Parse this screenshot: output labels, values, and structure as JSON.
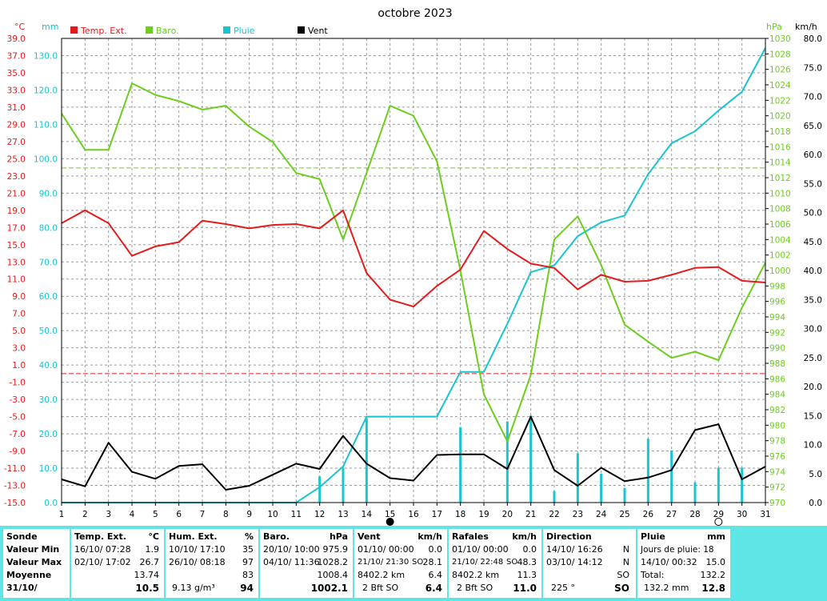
{
  "chart_data": {
    "type": "line",
    "title": "octobre 2023",
    "x": [
      1,
      2,
      3,
      4,
      5,
      6,
      7,
      8,
      9,
      10,
      11,
      12,
      13,
      14,
      15,
      16,
      17,
      18,
      19,
      20,
      21,
      22,
      23,
      24,
      25,
      26,
      27,
      28,
      29,
      30,
      31
    ],
    "x_ticks": [
      "1",
      "2",
      "3",
      "4",
      "5",
      "6",
      "7",
      "8",
      "9",
      "10",
      "11",
      "12",
      "13",
      "14",
      "15",
      "16",
      "17",
      "18",
      "19",
      "20",
      "21",
      "22",
      "23",
      "24",
      "25",
      "26",
      "27",
      "28",
      "29",
      "30",
      "31"
    ],
    "axes": {
      "temp": {
        "unit": "°C",
        "min": -15,
        "max": 39,
        "ticks": [
          "39.0",
          "37.0",
          "35.0",
          "33.0",
          "31.0",
          "29.0",
          "27.0",
          "25.0",
          "23.0",
          "21.0",
          "19.0",
          "17.0",
          "15.0",
          "13.0",
          "11.0",
          "9.0",
          "7.0",
          "5.0",
          "3.0",
          "1.0",
          "-1.0",
          "-3.0",
          "-5.0",
          "-7.0",
          "-9.0",
          "-11.0",
          "-13.0",
          "-15.0"
        ]
      },
      "rain": {
        "unit": "mm",
        "min": 0,
        "max": 135,
        "ticks": [
          "130.0",
          "120.0",
          "110.0",
          "100.0",
          "90.0",
          "80.0",
          "70.0",
          "60.0",
          "50.0",
          "40.0",
          "30.0",
          "20.0",
          "10.0",
          "0.0"
        ]
      },
      "baro": {
        "unit": "hPa",
        "min": 970,
        "max": 1030,
        "ticks": [
          "1030",
          "1028",
          "1026",
          "1024",
          "1022",
          "1020",
          "1018",
          "1016",
          "1014",
          "1012",
          "1010",
          "1008",
          "1006",
          "1004",
          "1002",
          "1000",
          "998",
          "996",
          "994",
          "992",
          "990",
          "988",
          "986",
          "984",
          "982",
          "980",
          "978",
          "976",
          "974",
          "972",
          "970"
        ]
      },
      "wind": {
        "unit": "km/h",
        "min": 0,
        "max": 80,
        "ticks": [
          "80.0",
          "75.0",
          "70.0",
          "65.0",
          "60.0",
          "55.0",
          "50.0",
          "45.0",
          "40.0",
          "35.0",
          "30.0",
          "25.0",
          "20.0",
          "15.0",
          "10.0",
          "5.0",
          "0.0"
        ]
      }
    },
    "series": [
      {
        "name": "Temp. Ext.",
        "color": "#e31b1b",
        "axis": "temp",
        "values": [
          17.5,
          19.0,
          17.5,
          13.7,
          14.8,
          15.3,
          17.8,
          17.4,
          16.9,
          17.3,
          17.4,
          16.9,
          19.0,
          11.7,
          8.6,
          7.8,
          10.2,
          12.1,
          16.6,
          14.5,
          12.8,
          12.3,
          9.8,
          11.5,
          10.7,
          10.8,
          11.5,
          12.3,
          12.4,
          10.8,
          10.6
        ]
      },
      {
        "name": "Baro.",
        "color": "#6ccd1e",
        "axis": "baro",
        "values": [
          1020.3,
          1015.6,
          1015.6,
          1024.2,
          1022.7,
          1021.9,
          1020.8,
          1021.3,
          1018.6,
          1016.6,
          1012.6,
          1011.8,
          1004.0,
          1012.6,
          1021.3,
          1020.0,
          1014.1,
          1000.0,
          984.0,
          977.9,
          986.5,
          1004.0,
          1007.0,
          1000.7,
          993.0,
          990.8,
          988.7,
          989.5,
          988.4,
          995.2,
          1001.0
        ]
      },
      {
        "name": "Pluie",
        "color": "#17c4cf",
        "axis": "rain",
        "values": [
          0,
          0,
          0,
          0,
          0,
          0,
          0,
          0,
          0,
          0,
          0,
          4.5,
          10.5,
          25.0,
          25.0,
          25.0,
          25.0,
          38.0,
          38.0,
          52.0,
          67.0,
          69.0,
          77.5,
          81.5,
          83.5,
          95.5,
          104.5,
          108.0,
          114.0,
          119.5,
          132.2
        ]
      },
      {
        "name": "Vent",
        "color": "#000000",
        "axis": "wind",
        "values": [
          4.0,
          2.8,
          10.3,
          5.3,
          4.1,
          6.3,
          6.6,
          2.2,
          2.9,
          4.8,
          6.7,
          5.8,
          11.5,
          6.7,
          4.2,
          3.8,
          8.2,
          8.3,
          8.3,
          5.8,
          14.8,
          5.6,
          2.9,
          6.0,
          3.7,
          4.3,
          5.6,
          12.5,
          13.5,
          4.0,
          6.2
        ]
      }
    ],
    "rain_bars": [
      {
        "day": 12,
        "value": 4.5
      },
      {
        "day": 13,
        "value": 6.0
      },
      {
        "day": 14,
        "value": 14.5
      },
      {
        "day": 18,
        "value": 13.0
      },
      {
        "day": 20,
        "value": 14.0
      },
      {
        "day": 21,
        "value": 15.0
      },
      {
        "day": 22,
        "value": 2.0
      },
      {
        "day": 23,
        "value": 8.5
      },
      {
        "day": 24,
        "value": 5.0
      },
      {
        "day": 25,
        "value": 2.5
      },
      {
        "day": 26,
        "value": 11.0
      },
      {
        "day": 27,
        "value": 9.0
      },
      {
        "day": 28,
        "value": 3.5
      },
      {
        "day": 29,
        "value": 6.0
      },
      {
        "day": 30,
        "value": 6.0
      }
    ],
    "reference_lines": [
      {
        "axis": "baro",
        "value": 1013.25,
        "color": "#6ccd1e"
      },
      {
        "axis": "temp",
        "value": 0,
        "color": "#e31b1b"
      }
    ],
    "moon_markers": [
      {
        "day": 15,
        "phase": "new"
      },
      {
        "day": 29,
        "phase": "full"
      }
    ],
    "grid": true,
    "legend": "top"
  },
  "colors": {
    "temp": "#e31b1b",
    "baro": "#6ccd1e",
    "rain": "#17c4cf",
    "wind": "#000000",
    "panel": "#5ee6e6"
  },
  "summary": {
    "sonde": {
      "title": "Sonde",
      "rows": [
        "Valeur Min",
        "Valeur Max",
        "Moyenne"
      ],
      "date": "31/10/"
    },
    "temp": {
      "title": "Temp. Ext.",
      "unit": "°C",
      "min_date": "16/10/ 07:28",
      "min": "1.9",
      "max_date": "02/10/ 17:02",
      "max": "26.7",
      "mean": "13.74",
      "current": "10.5"
    },
    "hum": {
      "title": "Hum. Ext.",
      "unit": "%",
      "min_date": "10/10/ 17:10",
      "min": "35",
      "max_date": "26/10/ 08:18",
      "max": "97",
      "mean": "83",
      "abs": "9.13 g/m³",
      "current": "94"
    },
    "baro": {
      "title": "Baro.",
      "unit": "hPa",
      "min_date": "20/10/ 10:00",
      "min": "975.9",
      "max_date": "04/10/ 11:36",
      "max": "1028.2",
      "mean": "1008.4",
      "current": "1002.1"
    },
    "vent": {
      "title": "Vent",
      "unit": "km/h",
      "min_date": "01/10/ 00:00",
      "min": "0.0",
      "max_date": "21/10/ 21:30",
      "max_dir": "SO",
      "max": "28.1",
      "dist": "8402.2 km",
      "mean": "6.4",
      "bft": "2 Bft SO",
      "current": "6.4"
    },
    "rafales": {
      "title": "Rafales",
      "unit": "km/h",
      "min_date": "01/10/ 00:00",
      "min": "0.0",
      "max_date": "21/10/ 22:48",
      "max_dir": "SO",
      "max": "48.3",
      "dist": "8402.2 km",
      "mean": "11.3",
      "bft": "2 Bft SO",
      "current": "11.0"
    },
    "direction": {
      "title": "Direction",
      "min_date": "14/10/ 16:26",
      "min": "N",
      "max_date": "03/10/ 14:12",
      "max": "N",
      "mean": "SO",
      "deg": "225 °",
      "current": "SO"
    },
    "pluie": {
      "title": "Pluie",
      "unit": "mm",
      "days_label": "Jours de pluie: 18",
      "max_date": "14/10/ 00:32",
      "max": "15.0",
      "total_label": "Total:",
      "total": "132.2",
      "total_mm": "132.2 mm",
      "current": "12.8"
    }
  }
}
